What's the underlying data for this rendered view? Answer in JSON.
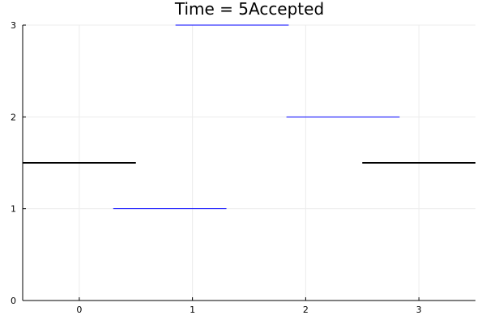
{
  "chart_data": {
    "type": "line",
    "title": "Time = 5Accepted",
    "xlabel": "",
    "ylabel": "",
    "xlim": [
      -0.5,
      3.5
    ],
    "ylim": [
      0,
      3
    ],
    "x_ticks": [
      0,
      1,
      2,
      3
    ],
    "y_ticks": [
      0,
      1,
      2,
      3
    ],
    "grid": true,
    "legend": "none",
    "segments": [
      {
        "x": [
          -0.5,
          0.5
        ],
        "y": [
          1.5,
          1.5
        ],
        "color": "#000000",
        "width": "thick"
      },
      {
        "x": [
          2.5,
          3.5
        ],
        "y": [
          1.5,
          1.5
        ],
        "color": "#000000",
        "width": "thick"
      },
      {
        "x": [
          0.3,
          1.3
        ],
        "y": [
          1.0,
          1.0
        ],
        "color": "#0000ff",
        "width": "thin"
      },
      {
        "x": [
          0.85,
          1.85
        ],
        "y": [
          3.0,
          3.0
        ],
        "color": "#0000ff",
        "width": "thin"
      },
      {
        "x": [
          1.83,
          2.83
        ],
        "y": [
          2.0,
          2.0
        ],
        "color": "#0000ff",
        "width": "thin"
      }
    ]
  }
}
